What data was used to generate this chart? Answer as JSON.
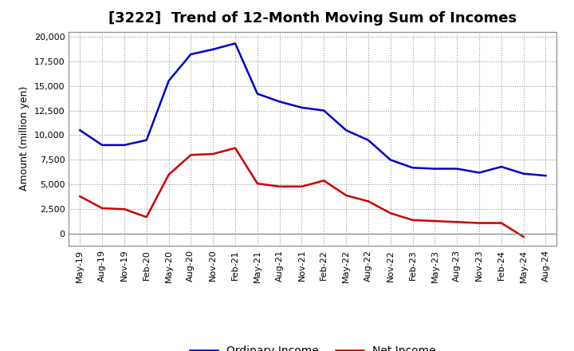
{
  "title": "[3222]  Trend of 12-Month Moving Sum of Incomes",
  "ylabel": "Amount (million yen)",
  "x_labels": [
    "May-19",
    "Aug-19",
    "Nov-19",
    "Feb-20",
    "May-20",
    "Aug-20",
    "Nov-20",
    "Feb-21",
    "May-21",
    "Aug-21",
    "Nov-21",
    "Feb-22",
    "May-22",
    "Aug-22",
    "Nov-22",
    "Feb-23",
    "May-23",
    "Aug-23",
    "Nov-23",
    "Feb-24",
    "May-24",
    "Aug-24"
  ],
  "ordinary_income": [
    10500,
    9000,
    9000,
    9500,
    15500,
    18200,
    18700,
    19300,
    14200,
    13400,
    12800,
    12500,
    10500,
    9500,
    7500,
    6700,
    6600,
    6600,
    6200,
    6800,
    6100,
    5900
  ],
  "net_income": [
    3800,
    2600,
    2500,
    1700,
    6000,
    8000,
    8100,
    8700,
    5100,
    4800,
    4800,
    5400,
    3900,
    3300,
    2100,
    1400,
    1300,
    1200,
    1100,
    1100,
    -300,
    null
  ],
  "ordinary_income_color": "#0000CC",
  "net_income_color": "#CC0000",
  "ylim": [
    -1200,
    20500
  ],
  "yticks": [
    0,
    2500,
    5000,
    7500,
    10000,
    12500,
    15000,
    17500,
    20000
  ],
  "background_color": "#FFFFFF",
  "grid_color": "#999999",
  "title_fontsize": 13,
  "ylabel_fontsize": 9,
  "tick_fontsize": 8,
  "legend_fontsize": 10
}
